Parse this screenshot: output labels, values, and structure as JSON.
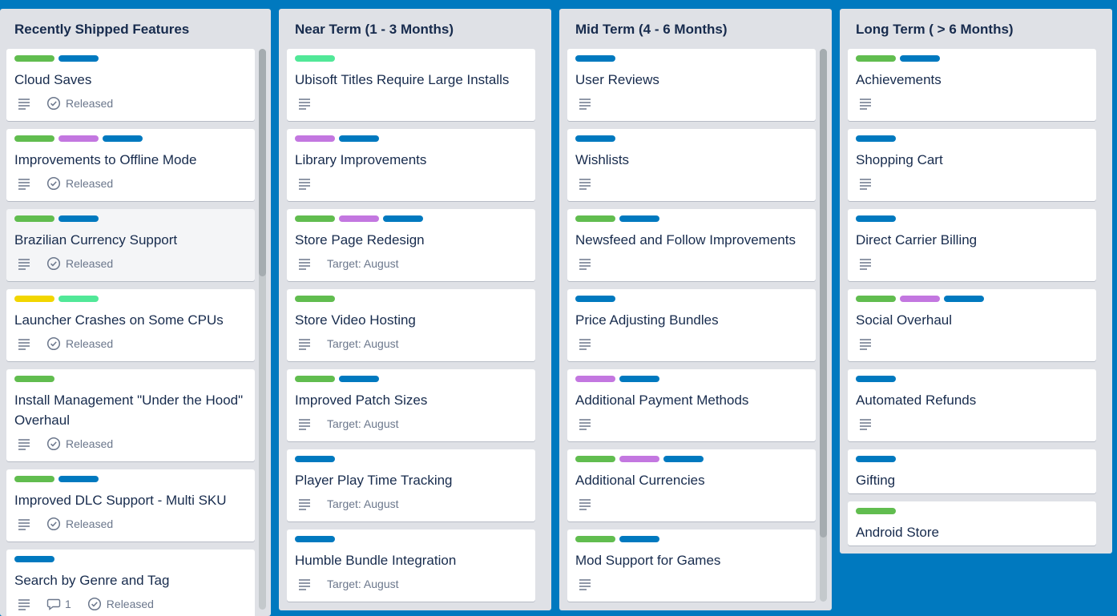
{
  "colors": {
    "green": "#61bd4f",
    "blue": "#0079bf",
    "purple": "#c377e0",
    "yellow": "#f2d600",
    "lime": "#51e898"
  },
  "lists": [
    {
      "title": "Recently Shipped Features",
      "cards": [
        {
          "labels": [
            "green",
            "blue"
          ],
          "title": "Cloud Saves",
          "description_icon": "description-icon",
          "status": "Released"
        },
        {
          "labels": [
            "green",
            "purple",
            "blue"
          ],
          "title": "Improvements to Offline Mode",
          "description_icon": "description-icon",
          "status": "Released"
        },
        {
          "labels": [
            "green",
            "blue"
          ],
          "title": "Brazilian Currency Support",
          "description_icon": "description-icon",
          "status": "Released"
        },
        {
          "labels": [
            "yellow",
            "lime"
          ],
          "title": "Launcher Crashes on Some CPUs",
          "description_icon": "description-icon",
          "status": "Released"
        },
        {
          "labels": [
            "green"
          ],
          "title": "Install Management \"Under the Hood\" Overhaul",
          "description_icon": "description-icon",
          "status": "Released"
        },
        {
          "labels": [
            "green",
            "blue"
          ],
          "title": "Improved DLC Support - Multi SKU",
          "description_icon": "description-icon",
          "status": "Released"
        },
        {
          "labels": [
            "blue"
          ],
          "title": "Search by Genre and Tag",
          "description_icon": "description-icon",
          "comments": "1",
          "status": "Released"
        }
      ]
    },
    {
      "title": "Near Term (1 - 3 Months)",
      "cards": [
        {
          "labels": [
            "lime"
          ],
          "title": "Ubisoft Titles Require Large Installs",
          "description_icon": "description-icon"
        },
        {
          "labels": [
            "purple",
            "blue"
          ],
          "title": "Library Improvements",
          "description_icon": "description-icon"
        },
        {
          "labels": [
            "green",
            "purple",
            "blue"
          ],
          "title": "Store Page Redesign",
          "description_icon": "description-icon",
          "target": "Target: August"
        },
        {
          "labels": [
            "green"
          ],
          "title": "Store Video Hosting",
          "description_icon": "description-icon",
          "target": "Target: August"
        },
        {
          "labels": [
            "green",
            "blue"
          ],
          "title": "Improved Patch Sizes",
          "description_icon": "description-icon",
          "target": "Target: August"
        },
        {
          "labels": [
            "blue"
          ],
          "title": "Player Play Time Tracking",
          "description_icon": "description-icon",
          "target": "Target: August"
        },
        {
          "labels": [
            "blue"
          ],
          "title": "Humble Bundle Integration",
          "description_icon": "description-icon",
          "target": "Target: August"
        }
      ]
    },
    {
      "title": "Mid Term (4 - 6 Months)",
      "cards": [
        {
          "labels": [
            "blue"
          ],
          "title": "User Reviews",
          "description_icon": "description-icon"
        },
        {
          "labels": [
            "blue"
          ],
          "title": "Wishlists",
          "description_icon": "description-icon"
        },
        {
          "labels": [
            "green",
            "blue"
          ],
          "title": "Newsfeed and Follow Improvements",
          "description_icon": "description-icon"
        },
        {
          "labels": [
            "blue"
          ],
          "title": "Price Adjusting Bundles",
          "description_icon": "description-icon"
        },
        {
          "labels": [
            "purple",
            "blue"
          ],
          "title": "Additional Payment Methods",
          "description_icon": "description-icon"
        },
        {
          "labels": [
            "green",
            "purple",
            "blue"
          ],
          "title": "Additional Currencies",
          "description_icon": "description-icon"
        },
        {
          "labels": [
            "green",
            "blue"
          ],
          "title": "Mod Support for Games",
          "description_icon": "description-icon"
        }
      ]
    },
    {
      "title": "Long Term ( > 6 Months)",
      "cards": [
        {
          "labels": [
            "green",
            "blue"
          ],
          "title": "Achievements",
          "description_icon": "description-icon"
        },
        {
          "labels": [
            "blue"
          ],
          "title": "Shopping Cart",
          "description_icon": "description-icon"
        },
        {
          "labels": [
            "blue"
          ],
          "title": "Direct Carrier Billing",
          "description_icon": "description-icon"
        },
        {
          "labels": [
            "green",
            "purple",
            "blue"
          ],
          "title": "Social Overhaul",
          "description_icon": "description-icon"
        },
        {
          "labels": [
            "blue"
          ],
          "title": "Automated Refunds",
          "description_icon": "description-icon"
        },
        {
          "labels": [
            "blue"
          ],
          "title": "Gifting"
        },
        {
          "labels": [
            "green"
          ],
          "title": "Android Store"
        }
      ]
    }
  ]
}
